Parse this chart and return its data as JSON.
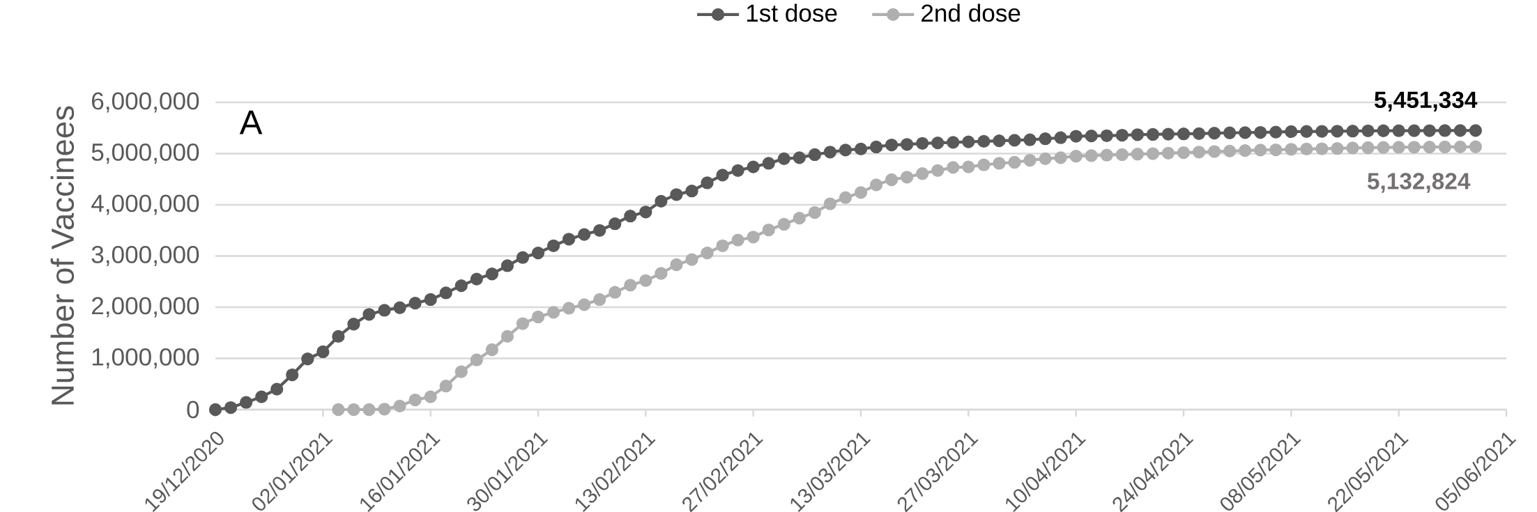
{
  "chart_data": {
    "type": "line",
    "ylabel": "Number of Vaccinees",
    "x": [
      "2020-12-19",
      "2020-12-21",
      "2020-12-23",
      "2020-12-25",
      "2020-12-27",
      "2020-12-29",
      "2020-12-31",
      "2021-01-02",
      "2021-01-04",
      "2021-01-06",
      "2021-01-08",
      "2021-01-10",
      "2021-01-12",
      "2021-01-14",
      "2021-01-16",
      "2021-01-18",
      "2021-01-20",
      "2021-01-22",
      "2021-01-24",
      "2021-01-26",
      "2021-01-28",
      "2021-01-30",
      "2021-02-01",
      "2021-02-03",
      "2021-02-05",
      "2021-02-07",
      "2021-02-09",
      "2021-02-11",
      "2021-02-13",
      "2021-02-15",
      "2021-02-17",
      "2021-02-19",
      "2021-02-21",
      "2021-02-23",
      "2021-02-25",
      "2021-02-27",
      "2021-03-01",
      "2021-03-03",
      "2021-03-05",
      "2021-03-07",
      "2021-03-09",
      "2021-03-11",
      "2021-03-13",
      "2021-03-15",
      "2021-03-17",
      "2021-03-19",
      "2021-03-21",
      "2021-03-23",
      "2021-03-25",
      "2021-03-27",
      "2021-03-29",
      "2021-03-31",
      "2021-04-02",
      "2021-04-04",
      "2021-04-06",
      "2021-04-08",
      "2021-04-10",
      "2021-04-12",
      "2021-04-14",
      "2021-04-16",
      "2021-04-18",
      "2021-04-20",
      "2021-04-22",
      "2021-04-24",
      "2021-04-26",
      "2021-04-28",
      "2021-04-30",
      "2021-05-02",
      "2021-05-04",
      "2021-05-06",
      "2021-05-08",
      "2021-05-10",
      "2021-05-12",
      "2021-05-14",
      "2021-05-16",
      "2021-05-18",
      "2021-05-20",
      "2021-05-22",
      "2021-05-24",
      "2021-05-26",
      "2021-05-28",
      "2021-05-30",
      "2021-06-01"
    ],
    "series": [
      {
        "name": "1st dose",
        "color": "#595959",
        "values": [
          0,
          40000,
          140000,
          250000,
          400000,
          680000,
          990000,
          1130000,
          1430000,
          1670000,
          1860000,
          1940000,
          1990000,
          2080000,
          2150000,
          2280000,
          2420000,
          2550000,
          2650000,
          2810000,
          2970000,
          3060000,
          3200000,
          3330000,
          3420000,
          3500000,
          3630000,
          3780000,
          3860000,
          4070000,
          4200000,
          4270000,
          4430000,
          4580000,
          4670000,
          4740000,
          4810000,
          4900000,
          4920000,
          4980000,
          5030000,
          5070000,
          5090000,
          5130000,
          5170000,
          5180000,
          5200000,
          5210000,
          5220000,
          5230000,
          5240000,
          5250000,
          5260000,
          5270000,
          5290000,
          5310000,
          5340000,
          5345000,
          5350000,
          5360000,
          5370000,
          5375000,
          5380000,
          5385000,
          5390000,
          5400000,
          5405000,
          5410000,
          5415000,
          5420000,
          5430000,
          5432000,
          5435000,
          5438000,
          5440000,
          5445000,
          5446000,
          5447000,
          5448000,
          5449000,
          5450000,
          5451000,
          5451334
        ]
      },
      {
        "name": "2nd dose",
        "color": "#afafaf",
        "values": [
          null,
          null,
          null,
          null,
          null,
          null,
          null,
          null,
          0,
          0,
          0,
          10000,
          70000,
          190000,
          250000,
          460000,
          740000,
          970000,
          1170000,
          1430000,
          1680000,
          1810000,
          1900000,
          1980000,
          2050000,
          2150000,
          2290000,
          2430000,
          2520000,
          2660000,
          2830000,
          2930000,
          3060000,
          3200000,
          3310000,
          3370000,
          3510000,
          3620000,
          3740000,
          3850000,
          4020000,
          4140000,
          4240000,
          4390000,
          4490000,
          4540000,
          4610000,
          4670000,
          4730000,
          4740000,
          4780000,
          4810000,
          4830000,
          4870000,
          4900000,
          4920000,
          4950000,
          4960000,
          4970000,
          4980000,
          4990000,
          5000000,
          5010000,
          5020000,
          5030000,
          5040000,
          5050000,
          5060000,
          5070000,
          5075000,
          5085000,
          5090000,
          5095000,
          5100000,
          5110000,
          5116000,
          5120000,
          5123000,
          5126000,
          5128000,
          5130000,
          5131000,
          5132824
        ]
      }
    ],
    "xlim": [
      "2020-12-19",
      "2021-06-05"
    ],
    "xticks": [
      {
        "value": "2020-12-19",
        "label": "19/12/2020"
      },
      {
        "value": "2021-01-02",
        "label": "02/01/2021"
      },
      {
        "value": "2021-01-16",
        "label": "16/01/2021"
      },
      {
        "value": "2021-01-30",
        "label": "30/01/2021"
      },
      {
        "value": "2021-02-13",
        "label": "13/02/2021"
      },
      {
        "value": "2021-02-27",
        "label": "27/02/2021"
      },
      {
        "value": "2021-03-13",
        "label": "13/03/2021"
      },
      {
        "value": "2021-03-27",
        "label": "27/03/2021"
      },
      {
        "value": "2021-04-10",
        "label": "10/04/2021"
      },
      {
        "value": "2021-04-24",
        "label": "24/04/2021"
      },
      {
        "value": "2021-05-08",
        "label": "08/05/2021"
      },
      {
        "value": "2021-05-22",
        "label": "22/05/2021"
      },
      {
        "value": "2021-06-05",
        "label": "05/06/2021"
      }
    ],
    "ylim": [
      0,
      6000000
    ],
    "yticks": [
      0,
      {
        "value": 1000000,
        "label": "1,000,000"
      },
      {
        "value": 2000000,
        "label": "2,000,000"
      },
      {
        "value": 3000000,
        "label": "3,000,000"
      },
      {
        "value": 4000000,
        "label": "4,000,000"
      },
      {
        "value": 5000000,
        "label": "5,000,000"
      },
      {
        "value": 6000000,
        "label": "6,000,000"
      }
    ],
    "annotations": [
      "A",
      {
        "text": "5,451,334",
        "x": "2021-06-01",
        "y": 5451334
      },
      {
        "text": "5,132,824",
        "x": "2021-06-01",
        "y": 5132824
      }
    ],
    "grid": "y",
    "legend": "top",
    "marker": "circle",
    "line_style": "solid"
  }
}
